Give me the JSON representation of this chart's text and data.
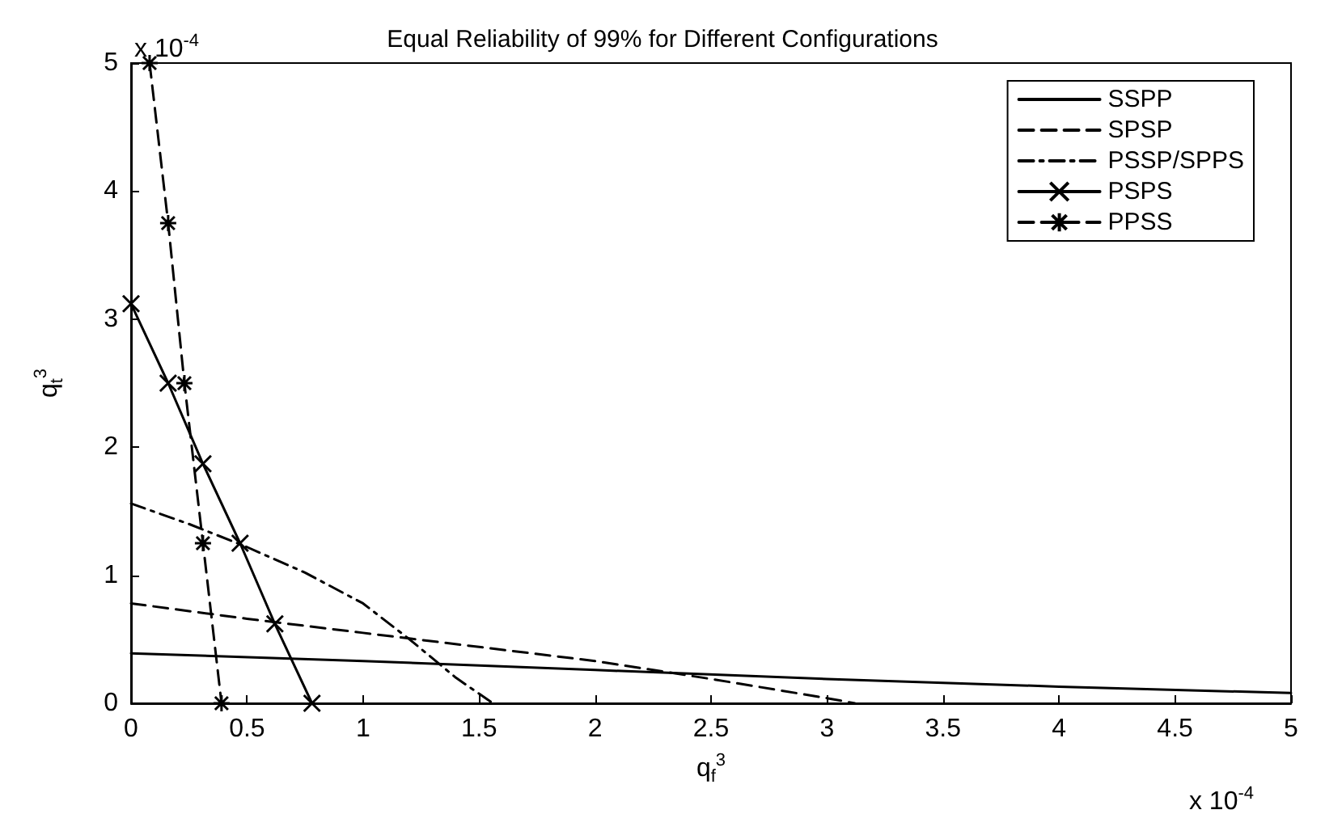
{
  "chart_data": {
    "type": "line",
    "title": "Equal Reliability of 99% for Different Configurations",
    "xlabel": "q$_{f}$$^{3}$",
    "ylabel": "q$_{t}$$^{3}$",
    "xlim": [
      0,
      5
    ],
    "xticks": [
      0,
      0.5,
      1,
      1.5,
      2,
      2.5,
      3,
      3.5,
      4,
      4.5,
      5
    ],
    "ylim": [
      0,
      5
    ],
    "yticks": [
      0,
      1,
      2,
      3,
      4,
      5
    ],
    "grid": false,
    "legend": "top right",
    "annotations": [
      "x 10$^{-4}$",
      "x 10$^{-4}$"
    ],
    "series": [
      {
        "name": "SSPP",
        "color": "#000000",
        "line_style": "solid",
        "marker": "none",
        "x": [
          0,
          1,
          2,
          3,
          4,
          5
        ],
        "values": [
          0.39,
          0.33,
          0.26,
          0.19,
          0.13,
          0.08
        ]
      },
      {
        "name": "SPSP",
        "color": "#000000",
        "line_style": "dashed",
        "marker": "none",
        "x": [
          0,
          0.5,
          1,
          1.5,
          2,
          2.5,
          3,
          3.12
        ],
        "values": [
          0.78,
          0.66,
          0.55,
          0.44,
          0.33,
          0.19,
          0.04,
          0
        ]
      },
      {
        "name": "PSSP/SPPS",
        "color": "#000000",
        "line_style": "dashdot",
        "marker": "none",
        "x": [
          0,
          0.25,
          0.5,
          0.75,
          1,
          1.2,
          1.4,
          1.56
        ],
        "values": [
          1.56,
          1.4,
          1.22,
          1.02,
          0.78,
          0.5,
          0.2,
          0
        ]
      },
      {
        "name": "PSPS",
        "color": "#000000",
        "line_style": "solid",
        "marker": "cross",
        "x": [
          0,
          0.16,
          0.31,
          0.47,
          0.62,
          0.78
        ],
        "values": [
          3.12,
          2.5,
          1.87,
          1.25,
          0.62,
          0
        ]
      },
      {
        "name": "PPSS",
        "color": "#000000",
        "line_style": "dashed",
        "marker": "cross",
        "x": [
          0.08,
          0.16,
          0.23,
          0.31,
          0.39
        ],
        "values": [
          5.0,
          3.75,
          2.5,
          1.25,
          0
        ]
      }
    ]
  }
}
